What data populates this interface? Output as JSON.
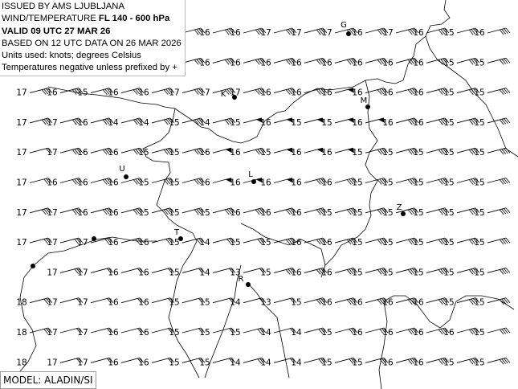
{
  "header": {
    "line1": "ISSUED BY AMS LJUBLJANA",
    "line2_prefix": "WIND/TEMPERATURE ",
    "line2_level": "FL 140 - 600 hPa",
    "line3": "VALID 09 UTC 27 MAR 26",
    "line4": "BASED ON 12 UTC DATA ON 26 MAR 2026",
    "line5": "Units used: knots; degrees Celsius",
    "line6": "Temperatures negative unless prefixed by +"
  },
  "model_label": "MODEL: ALADIN/SI",
  "temperature_grid": [
    [
      null,
      null,
      null,
      null,
      null,
      null,
      16,
      16,
      17,
      17,
      17,
      16,
      17,
      16,
      15,
      16
    ],
    [
      null,
      null,
      null,
      null,
      null,
      null,
      16,
      16,
      16,
      16,
      16,
      16,
      16,
      16,
      15,
      15
    ],
    [
      17,
      16,
      15,
      16,
      16,
      17,
      17,
      17,
      16,
      16,
      16,
      16,
      16,
      16,
      15,
      15
    ],
    [
      17,
      17,
      16,
      14,
      14,
      15,
      14,
      15,
      16,
      15,
      15,
      16,
      16,
      16,
      15,
      15
    ],
    [
      17,
      17,
      16,
      16,
      15,
      15,
      16,
      16,
      15,
      16,
      16,
      15,
      15,
      15,
      15,
      15
    ],
    [
      17,
      16,
      16,
      16,
      15,
      15,
      16,
      16,
      16,
      16,
      16,
      15,
      15,
      15,
      15,
      15
    ],
    [
      17,
      17,
      16,
      16,
      15,
      15,
      15,
      16,
      16,
      16,
      15,
      15,
      15,
      15,
      15,
      15
    ],
    [
      17,
      17,
      17,
      16,
      16,
      15,
      14,
      15,
      15,
      16,
      16,
      15,
      15,
      15,
      15,
      15
    ],
    [
      null,
      17,
      17,
      16,
      16,
      15,
      14,
      13,
      15,
      16,
      16,
      15,
      15,
      15,
      15,
      15
    ],
    [
      18,
      17,
      17,
      16,
      16,
      15,
      15,
      14,
      13,
      15,
      16,
      16,
      16,
      16,
      15,
      15
    ],
    [
      18,
      17,
      17,
      16,
      16,
      15,
      15,
      15,
      14,
      14,
      15,
      16,
      16,
      16,
      16,
      15
    ],
    [
      18,
      17,
      17,
      16,
      16,
      15,
      15,
      14,
      14,
      14,
      15,
      15,
      16,
      16,
      15,
      15
    ]
  ],
  "wind_kt_grid": [
    [
      null,
      null,
      null,
      null,
      null,
      40,
      40,
      40,
      40,
      40,
      40,
      40,
      40,
      40,
      40,
      40
    ],
    [
      null,
      null,
      null,
      null,
      null,
      40,
      40,
      40,
      40,
      40,
      40,
      40,
      40,
      40,
      40,
      40
    ],
    [
      40,
      40,
      40,
      40,
      40,
      40,
      40,
      40,
      40,
      40,
      50,
      40,
      40,
      40,
      40,
      40
    ],
    [
      40,
      40,
      40,
      40,
      40,
      40,
      40,
      50,
      50,
      50,
      50,
      50,
      40,
      40,
      40,
      40
    ],
    [
      20,
      40,
      40,
      40,
      40,
      40,
      50,
      40,
      50,
      50,
      50,
      40,
      40,
      40,
      40,
      40
    ],
    [
      30,
      40,
      40,
      40,
      40,
      40,
      50,
      50,
      50,
      40,
      40,
      40,
      40,
      40,
      40,
      40
    ],
    [
      40,
      40,
      40,
      40,
      40,
      40,
      40,
      40,
      40,
      40,
      40,
      40,
      40,
      40,
      40,
      40
    ],
    [
      30,
      30,
      30,
      30,
      30,
      30,
      30,
      30,
      40,
      40,
      40,
      40,
      40,
      40,
      40,
      40
    ],
    [
      null,
      30,
      20,
      20,
      20,
      20,
      20,
      20,
      40,
      40,
      40,
      40,
      40,
      40,
      40,
      40
    ],
    [
      30,
      20,
      20,
      20,
      20,
      20,
      20,
      20,
      20,
      40,
      40,
      40,
      40,
      40,
      40,
      40
    ],
    [
      30,
      20,
      20,
      20,
      20,
      20,
      20,
      30,
      20,
      30,
      30,
      30,
      40,
      40,
      40,
      40
    ],
    [
      null,
      20,
      20,
      20,
      20,
      20,
      20,
      30,
      20,
      30,
      30,
      30,
      40,
      40,
      40,
      40
    ]
  ],
  "stations": [
    {
      "label": "G"
    },
    {
      "label": "K"
    },
    {
      "label": "M"
    },
    {
      "label": "U"
    },
    {
      "label": "L"
    },
    {
      "label": "Z"
    },
    {
      "label": "T"
    },
    {
      "label": "R"
    }
  ],
  "colors": {
    "ink": "#000000",
    "border": "#bbbbbb"
  }
}
